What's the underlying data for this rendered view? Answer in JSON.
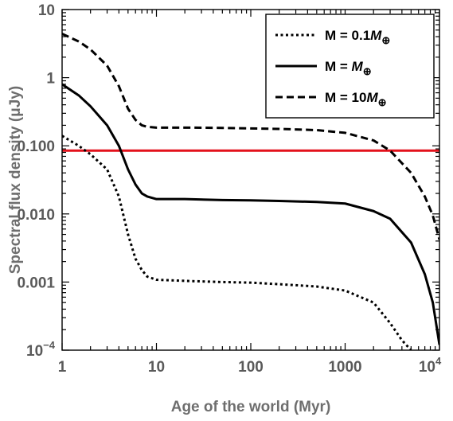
{
  "chart_data": {
    "type": "line",
    "xscale": "log",
    "yscale": "log",
    "xlim": [
      1,
      10000
    ],
    "ylim": [
      0.0001,
      10
    ],
    "xlabel": "Age of the world (Myr)",
    "ylabel": "Spectral flux density (μJy)",
    "x_ticks": [
      {
        "value": 1,
        "label": "1"
      },
      {
        "value": 10,
        "label": "10"
      },
      {
        "value": 100,
        "label": "100"
      },
      {
        "value": 1000,
        "label": "1000"
      },
      {
        "value": 10000,
        "label": "10",
        "sup": "4"
      }
    ],
    "y_ticks": [
      {
        "value": 0.0001,
        "label": "10",
        "sup": "−4"
      },
      {
        "value": 0.001,
        "label": "0.001"
      },
      {
        "value": 0.01,
        "label": "0.010"
      },
      {
        "value": 0.1,
        "label": "0.100"
      },
      {
        "value": 1,
        "label": "1"
      },
      {
        "value": 10,
        "label": "10"
      }
    ],
    "legend": {
      "position": "top-right",
      "entries": [
        {
          "prefix": "M = 0.1",
          "italic": "M",
          "sub": "⊕",
          "style": "dotted"
        },
        {
          "prefix": "M = ",
          "italic": "M",
          "sub": "⊕",
          "style": "solid"
        },
        {
          "prefix": "M = 10",
          "italic": "M",
          "sub": "⊕",
          "style": "dashed"
        }
      ]
    },
    "threshold": {
      "y": 0.085,
      "color": "#e3111b"
    },
    "series": [
      {
        "style": "dotted",
        "color": "#000000",
        "points": [
          [
            1,
            0.14
          ],
          [
            1.5,
            0.1
          ],
          [
            2,
            0.075
          ],
          [
            3,
            0.045
          ],
          [
            4,
            0.018
          ],
          [
            5,
            0.005
          ],
          [
            6,
            0.0022
          ],
          [
            7,
            0.0015
          ],
          [
            8,
            0.0012
          ],
          [
            10,
            0.00108
          ],
          [
            20,
            0.00104
          ],
          [
            50,
            0.001
          ],
          [
            100,
            0.00098
          ],
          [
            200,
            0.00093
          ],
          [
            500,
            0.00086
          ],
          [
            1000,
            0.00075
          ],
          [
            2000,
            0.0005
          ],
          [
            3000,
            0.00025
          ],
          [
            4000,
            0.00014
          ],
          [
            5000,
            0.0001
          ]
        ]
      },
      {
        "style": "solid",
        "color": "#000000",
        "points": [
          [
            1,
            0.8
          ],
          [
            1.5,
            0.55
          ],
          [
            2,
            0.38
          ],
          [
            3,
            0.2
          ],
          [
            4,
            0.1
          ],
          [
            5,
            0.045
          ],
          [
            6,
            0.027
          ],
          [
            7,
            0.02
          ],
          [
            8,
            0.018
          ],
          [
            10,
            0.0165
          ],
          [
            20,
            0.0165
          ],
          [
            50,
            0.016
          ],
          [
            100,
            0.0158
          ],
          [
            200,
            0.0155
          ],
          [
            500,
            0.015
          ],
          [
            1000,
            0.0142
          ],
          [
            2000,
            0.011
          ],
          [
            3000,
            0.0085
          ],
          [
            5000,
            0.0038
          ],
          [
            7000,
            0.0013
          ],
          [
            8500,
            0.0005
          ],
          [
            10000,
            0.00012
          ]
        ]
      },
      {
        "style": "dashed",
        "color": "#000000",
        "points": [
          [
            1,
            4.4
          ],
          [
            1.5,
            3.4
          ],
          [
            2,
            2.6
          ],
          [
            3,
            1.5
          ],
          [
            4,
            0.75
          ],
          [
            5,
            0.35
          ],
          [
            6,
            0.24
          ],
          [
            7,
            0.2
          ],
          [
            8,
            0.19
          ],
          [
            10,
            0.185
          ],
          [
            20,
            0.185
          ],
          [
            50,
            0.183
          ],
          [
            100,
            0.18
          ],
          [
            200,
            0.177
          ],
          [
            500,
            0.17
          ],
          [
            1000,
            0.155
          ],
          [
            2000,
            0.12
          ],
          [
            3000,
            0.085
          ],
          [
            5000,
            0.04
          ],
          [
            7000,
            0.018
          ],
          [
            8500,
            0.0095
          ],
          [
            10000,
            0.0042
          ]
        ]
      }
    ]
  }
}
